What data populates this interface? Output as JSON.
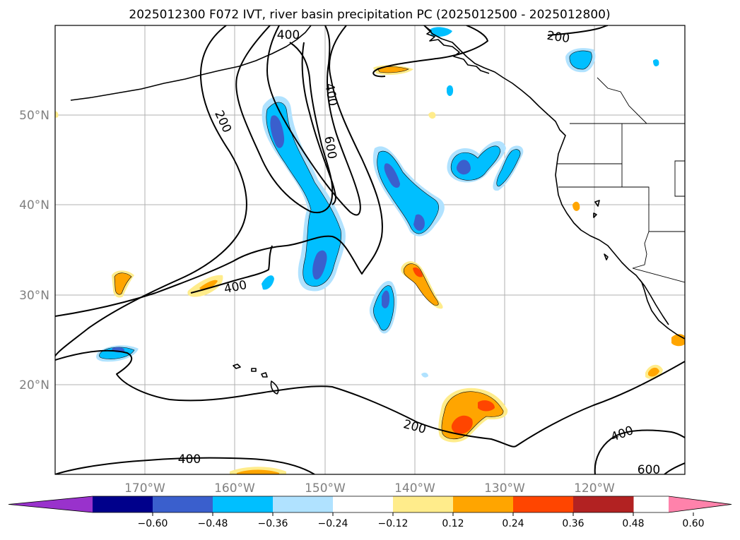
{
  "title": "2025012300 F072 IVT, river basin precipitation PC (2025012500 - 2025012800)",
  "lon_ticks": [
    "170°W",
    "160°W",
    "150°W",
    "140°W",
    "130°W",
    "120°W"
  ],
  "lat_ticks": [
    "50°N",
    "40°N",
    "30°N",
    "20°N"
  ],
  "contour_labels": {
    "c200_a": "200",
    "c200_b": "200",
    "c200_c": "200",
    "c400_a": "400",
    "c400_b": "400",
    "c400_c": "400",
    "c400_d": "400",
    "c400_e": "400",
    "c600_a": "600",
    "c600_b": "600"
  },
  "colorbar": {
    "colors": [
      "#9932cc",
      "#00008b",
      "#3a5fcd",
      "#00bfff",
      "#b0e2ff",
      "#ffffff",
      "#ffec8b",
      "#ffa500",
      "#ff4500",
      "#b22222",
      "#ff82ab"
    ],
    "tick_labels": [
      "−0.60",
      "−0.48",
      "−0.36",
      "−0.24",
      "−0.12",
      "0.12",
      "0.24",
      "0.36",
      "0.48",
      "0.60"
    ]
  },
  "map": {
    "lon_range": [
      "180°W",
      "110°W"
    ],
    "lat_range": [
      "10°N",
      "60°N"
    ],
    "ivt_contour_levels": [
      200,
      400,
      600
    ]
  }
}
